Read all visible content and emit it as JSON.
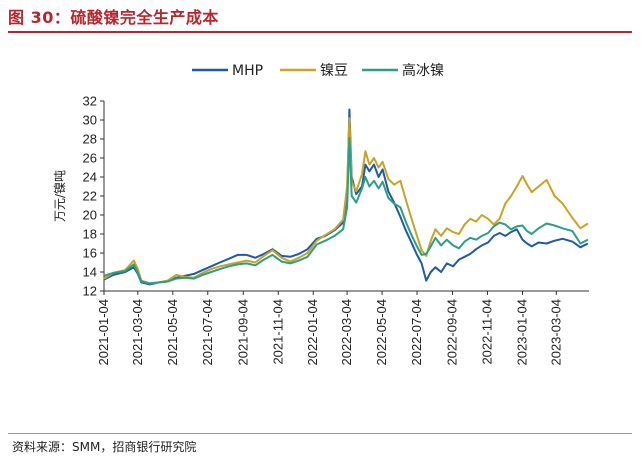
{
  "header": {
    "title": "图 30：硫酸镍完全生产成本"
  },
  "footer": {
    "source": "资料来源：SMM，招商银行研究院"
  },
  "chart_data": {
    "type": "line",
    "ylabel": "万元/镍吨",
    "ylim": [
      12,
      32
    ],
    "yticks": [
      12,
      14,
      16,
      18,
      20,
      22,
      24,
      26,
      28,
      30,
      32
    ],
    "xlim": [
      "2021-01-04",
      "2023-04-30"
    ],
    "xticks": [
      "2021-01-04",
      "2021-03-04",
      "2021-05-04",
      "2021-07-04",
      "2021-09-04",
      "2021-11-04",
      "2022-01-04",
      "2022-03-04",
      "2022-05-04",
      "2022-07-04",
      "2022-09-04",
      "2022-11-04",
      "2023-01-04",
      "2023-03-04"
    ],
    "legend_position": "top",
    "series": [
      {
        "name": "MHP",
        "color": "#1f5aa6",
        "points": [
          [
            "2021-01-04",
            13.2
          ],
          [
            "2021-01-20",
            13.7
          ],
          [
            "2021-02-10",
            14.0
          ],
          [
            "2021-02-25",
            14.5
          ],
          [
            "2021-03-04",
            13.8
          ],
          [
            "2021-03-10",
            12.9
          ],
          [
            "2021-03-25",
            12.7
          ],
          [
            "2021-04-10",
            12.9
          ],
          [
            "2021-04-25",
            13.0
          ],
          [
            "2021-05-10",
            13.4
          ],
          [
            "2021-05-25",
            13.6
          ],
          [
            "2021-06-10",
            13.8
          ],
          [
            "2021-06-25",
            14.2
          ],
          [
            "2021-07-10",
            14.6
          ],
          [
            "2021-07-25",
            15.0
          ],
          [
            "2021-08-10",
            15.4
          ],
          [
            "2021-08-25",
            15.8
          ],
          [
            "2021-09-10",
            15.8
          ],
          [
            "2021-09-25",
            15.5
          ],
          [
            "2021-10-10",
            15.9
          ],
          [
            "2021-10-25",
            16.4
          ],
          [
            "2021-11-10",
            15.7
          ],
          [
            "2021-11-25",
            15.6
          ],
          [
            "2021-12-10",
            15.9
          ],
          [
            "2021-12-25",
            16.4
          ],
          [
            "2022-01-10",
            17.5
          ],
          [
            "2022-01-25",
            17.8
          ],
          [
            "2022-02-10",
            18.4
          ],
          [
            "2022-02-25",
            19.2
          ],
          [
            "2022-03-04",
            21.5
          ],
          [
            "2022-03-08",
            31.1
          ],
          [
            "2022-03-12",
            24.0
          ],
          [
            "2022-03-20",
            22.2
          ],
          [
            "2022-03-30",
            23.0
          ],
          [
            "2022-04-05",
            25.3
          ],
          [
            "2022-04-12",
            24.6
          ],
          [
            "2022-04-20",
            25.3
          ],
          [
            "2022-04-28",
            24.0
          ],
          [
            "2022-05-05",
            24.8
          ],
          [
            "2022-05-15",
            22.5
          ],
          [
            "2022-05-25",
            21.3
          ],
          [
            "2022-06-05",
            19.8
          ],
          [
            "2022-06-15",
            18.3
          ],
          [
            "2022-06-25",
            17.0
          ],
          [
            "2022-07-04",
            15.8
          ],
          [
            "2022-07-12",
            14.9
          ],
          [
            "2022-07-20",
            13.1
          ],
          [
            "2022-07-28",
            14.0
          ],
          [
            "2022-08-05",
            14.5
          ],
          [
            "2022-08-15",
            14.0
          ],
          [
            "2022-08-25",
            14.9
          ],
          [
            "2022-09-05",
            14.6
          ],
          [
            "2022-09-15",
            15.3
          ],
          [
            "2022-09-25",
            15.6
          ],
          [
            "2022-10-05",
            15.9
          ],
          [
            "2022-10-15",
            16.4
          ],
          [
            "2022-10-25",
            16.8
          ],
          [
            "2022-11-05",
            17.1
          ],
          [
            "2022-11-15",
            17.8
          ],
          [
            "2022-11-25",
            18.1
          ],
          [
            "2022-12-05",
            17.8
          ],
          [
            "2022-12-15",
            18.2
          ],
          [
            "2022-12-25",
            18.5
          ],
          [
            "2023-01-04",
            17.4
          ],
          [
            "2023-01-12",
            17.0
          ],
          [
            "2023-01-20",
            16.7
          ],
          [
            "2023-02-01",
            17.1
          ],
          [
            "2023-02-15",
            17.0
          ],
          [
            "2023-03-01",
            17.3
          ],
          [
            "2023-03-15",
            17.5
          ],
          [
            "2023-04-01",
            17.2
          ],
          [
            "2023-04-15",
            16.6
          ],
          [
            "2023-04-28",
            17.0
          ]
        ]
      },
      {
        "name": "镍豆",
        "color": "#c9a227",
        "points": [
          [
            "2021-01-04",
            13.3
          ],
          [
            "2021-01-20",
            13.9
          ],
          [
            "2021-02-10",
            14.2
          ],
          [
            "2021-02-25",
            15.2
          ],
          [
            "2021-03-04",
            14.3
          ],
          [
            "2021-03-10",
            13.1
          ],
          [
            "2021-03-25",
            12.8
          ],
          [
            "2021-04-10",
            12.9
          ],
          [
            "2021-04-25",
            13.1
          ],
          [
            "2021-05-10",
            13.7
          ],
          [
            "2021-05-25",
            13.5
          ],
          [
            "2021-06-10",
            13.4
          ],
          [
            "2021-06-25",
            13.9
          ],
          [
            "2021-07-10",
            14.3
          ],
          [
            "2021-07-25",
            14.6
          ],
          [
            "2021-08-10",
            14.8
          ],
          [
            "2021-08-25",
            15.0
          ],
          [
            "2021-09-10",
            15.2
          ],
          [
            "2021-09-25",
            15.0
          ],
          [
            "2021-10-10",
            15.7
          ],
          [
            "2021-10-25",
            16.3
          ],
          [
            "2021-11-10",
            15.5
          ],
          [
            "2021-11-25",
            15.1
          ],
          [
            "2021-12-10",
            15.5
          ],
          [
            "2021-12-25",
            16.0
          ],
          [
            "2022-01-10",
            17.3
          ],
          [
            "2022-01-25",
            17.9
          ],
          [
            "2022-02-10",
            18.5
          ],
          [
            "2022-02-25",
            19.5
          ],
          [
            "2022-03-04",
            23.0
          ],
          [
            "2022-03-08",
            30.2
          ],
          [
            "2022-03-12",
            23.5
          ],
          [
            "2022-03-20",
            22.5
          ],
          [
            "2022-03-30",
            24.3
          ],
          [
            "2022-04-05",
            26.7
          ],
          [
            "2022-04-12",
            25.3
          ],
          [
            "2022-04-20",
            26.0
          ],
          [
            "2022-04-28",
            25.0
          ],
          [
            "2022-05-05",
            25.6
          ],
          [
            "2022-05-15",
            23.8
          ],
          [
            "2022-05-25",
            23.2
          ],
          [
            "2022-06-05",
            23.6
          ],
          [
            "2022-06-15",
            21.5
          ],
          [
            "2022-06-25",
            19.5
          ],
          [
            "2022-07-04",
            17.8
          ],
          [
            "2022-07-12",
            16.3
          ],
          [
            "2022-07-20",
            15.7
          ],
          [
            "2022-07-28",
            17.3
          ],
          [
            "2022-08-05",
            18.5
          ],
          [
            "2022-08-15",
            17.8
          ],
          [
            "2022-08-25",
            18.6
          ],
          [
            "2022-09-05",
            18.2
          ],
          [
            "2022-09-15",
            18.0
          ],
          [
            "2022-09-25",
            19.0
          ],
          [
            "2022-10-05",
            19.6
          ],
          [
            "2022-10-15",
            19.3
          ],
          [
            "2022-10-25",
            20.0
          ],
          [
            "2022-11-05",
            19.6
          ],
          [
            "2022-11-15",
            19.0
          ],
          [
            "2022-11-25",
            19.6
          ],
          [
            "2022-12-05",
            21.2
          ],
          [
            "2022-12-15",
            22.0
          ],
          [
            "2022-12-25",
            23.0
          ],
          [
            "2023-01-04",
            24.1
          ],
          [
            "2023-01-12",
            23.2
          ],
          [
            "2023-01-20",
            22.4
          ],
          [
            "2023-02-01",
            23.0
          ],
          [
            "2023-02-15",
            23.7
          ],
          [
            "2023-03-01",
            22.0
          ],
          [
            "2023-03-15",
            21.2
          ],
          [
            "2023-04-01",
            19.7
          ],
          [
            "2023-04-15",
            18.6
          ],
          [
            "2023-04-28",
            19.1
          ]
        ]
      },
      {
        "name": "高冰镍",
        "color": "#2e9e83",
        "points": [
          [
            "2021-01-04",
            13.6
          ],
          [
            "2021-01-20",
            13.9
          ],
          [
            "2021-02-10",
            14.1
          ],
          [
            "2021-02-25",
            14.8
          ],
          [
            "2021-03-04",
            13.9
          ],
          [
            "2021-03-10",
            13.0
          ],
          [
            "2021-03-25",
            12.8
          ],
          [
            "2021-04-10",
            12.9
          ],
          [
            "2021-04-25",
            13.0
          ],
          [
            "2021-05-10",
            13.3
          ],
          [
            "2021-05-25",
            13.4
          ],
          [
            "2021-06-10",
            13.3
          ],
          [
            "2021-06-25",
            13.7
          ],
          [
            "2021-07-10",
            14.0
          ],
          [
            "2021-07-25",
            14.3
          ],
          [
            "2021-08-10",
            14.6
          ],
          [
            "2021-08-25",
            14.8
          ],
          [
            "2021-09-10",
            14.9
          ],
          [
            "2021-09-25",
            14.7
          ],
          [
            "2021-10-10",
            15.3
          ],
          [
            "2021-10-25",
            15.8
          ],
          [
            "2021-11-10",
            15.1
          ],
          [
            "2021-11-25",
            14.9
          ],
          [
            "2021-12-10",
            15.2
          ],
          [
            "2021-12-25",
            15.6
          ],
          [
            "2022-01-10",
            16.9
          ],
          [
            "2022-01-25",
            17.3
          ],
          [
            "2022-02-10",
            17.8
          ],
          [
            "2022-02-25",
            18.5
          ],
          [
            "2022-03-04",
            20.8
          ],
          [
            "2022-03-08",
            28.1
          ],
          [
            "2022-03-12",
            22.0
          ],
          [
            "2022-03-20",
            21.3
          ],
          [
            "2022-03-30",
            22.8
          ],
          [
            "2022-04-05",
            24.0
          ],
          [
            "2022-04-12",
            23.0
          ],
          [
            "2022-04-20",
            23.6
          ],
          [
            "2022-04-28",
            22.8
          ],
          [
            "2022-05-05",
            23.5
          ],
          [
            "2022-05-15",
            21.8
          ],
          [
            "2022-05-25",
            21.2
          ],
          [
            "2022-06-05",
            20.8
          ],
          [
            "2022-06-15",
            19.2
          ],
          [
            "2022-06-25",
            17.8
          ],
          [
            "2022-07-04",
            16.7
          ],
          [
            "2022-07-12",
            15.8
          ],
          [
            "2022-07-20",
            15.9
          ],
          [
            "2022-07-28",
            16.7
          ],
          [
            "2022-08-05",
            17.6
          ],
          [
            "2022-08-15",
            16.8
          ],
          [
            "2022-08-25",
            17.4
          ],
          [
            "2022-09-05",
            16.8
          ],
          [
            "2022-09-15",
            16.5
          ],
          [
            "2022-09-25",
            17.2
          ],
          [
            "2022-10-05",
            17.6
          ],
          [
            "2022-10-15",
            17.4
          ],
          [
            "2022-10-25",
            17.8
          ],
          [
            "2022-11-05",
            18.1
          ],
          [
            "2022-11-15",
            18.8
          ],
          [
            "2022-11-25",
            19.2
          ],
          [
            "2022-12-05",
            19.0
          ],
          [
            "2022-12-15",
            18.5
          ],
          [
            "2022-12-25",
            18.8
          ],
          [
            "2023-01-04",
            18.9
          ],
          [
            "2023-01-12",
            18.3
          ],
          [
            "2023-01-20",
            18.0
          ],
          [
            "2023-02-01",
            18.6
          ],
          [
            "2023-02-15",
            19.1
          ],
          [
            "2023-03-01",
            18.9
          ],
          [
            "2023-03-15",
            18.6
          ],
          [
            "2023-04-01",
            18.3
          ],
          [
            "2023-04-15",
            17.0
          ],
          [
            "2023-04-28",
            17.4
          ]
        ]
      }
    ]
  }
}
